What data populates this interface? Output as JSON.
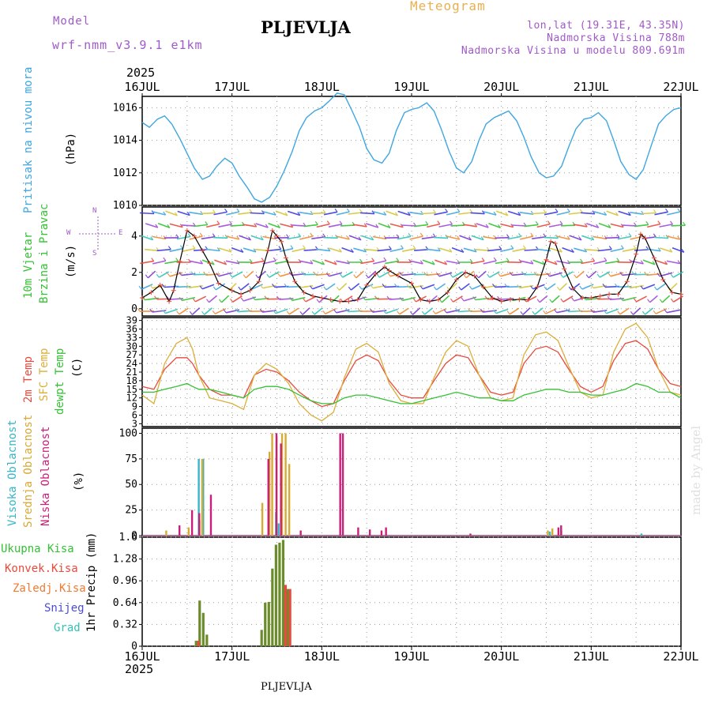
{
  "header": {
    "model_label": "Model",
    "model_name": "wrf-nmm_v3.9.1 e1km",
    "city": "PLJEVLJA",
    "title": "Meteogram",
    "coords": "lon,lat (19.31E, 43.35N)",
    "elevation": "Nadmorska Visina 788m",
    "model_elevation": "Nadmorska Visina u modelu 809.691m",
    "footer_city": "PLJEVLJA",
    "credit": "made by Angel"
  },
  "time_axis": {
    "year": "2025",
    "dates": [
      "16JUL",
      "17JUL",
      "18JUL",
      "19JUL",
      "20JUL",
      "21JUL",
      "22JUL"
    ]
  },
  "panels": {
    "pressure": {
      "title": "Pritisak na nivou mora",
      "unit": "(hPa)",
      "ticks": [
        "1010",
        "1012",
        "1014",
        "1016"
      ]
    },
    "wind": {
      "title_1": "10m Vjetar",
      "title_2": "Brzina i Pravac",
      "unit": "(m/s)",
      "ticks": [
        "0",
        "2",
        "4"
      ],
      "compass_n": "N",
      "compass_s": "S",
      "compass_w": "W",
      "compass_e": "E"
    },
    "temp": {
      "title_1": "2m Temp",
      "title_2": "SFC Temp",
      "title_3": "dewpt Temp",
      "unit": "(C)",
      "ticks": [
        "3",
        "6",
        "9",
        "12",
        "15",
        "18",
        "21",
        "24",
        "27",
        "30",
        "33",
        "36",
        "39"
      ]
    },
    "cloud": {
      "title_1": "Visoka Oblacnost",
      "title_2": "Srednja Oblacnost",
      "title_3": "Niska Oblacnost",
      "unit": "(%)",
      "ticks": [
        "0",
        "25",
        "50",
        "75",
        "100"
      ]
    },
    "precip": {
      "legend": [
        "Ukupna Kisa",
        "Konvek.Kisa",
        "Zaledj.Kisa",
        "Snijeg",
        "Grad"
      ],
      "unit": "1hr Precip (mm)",
      "ticks": [
        "0",
        "0.32",
        "0.64",
        "0.96",
        "1.28",
        "1.6"
      ]
    }
  },
  "colors": {
    "pressure_line": "#3ea6e0",
    "t2m": "#e84a3c",
    "tsfc": "#dcae3a",
    "dewpt": "#33c233",
    "cloud_high": "#36b6c8",
    "cloud_mid": "#d7a935",
    "cloud_low": "#c8207a",
    "rain_total": "#33c233",
    "rain_conv": "#e84a3c",
    "rain_frz": "#f07a30",
    "snow": "#4a4ad8",
    "hail": "#33c2b4",
    "title_purple": "#a05ac8",
    "title_orange": "#e8b050"
  },
  "chart_data": [
    {
      "type": "line",
      "name": "pressure",
      "x_days": [
        0,
        0.08,
        0.17,
        0.25,
        0.33,
        0.42,
        0.5,
        0.58,
        0.67,
        0.75,
        0.83,
        0.92,
        1.0,
        1.08,
        1.17,
        1.25,
        1.33,
        1.42,
        1.5,
        1.58,
        1.67,
        1.75,
        1.83,
        1.92,
        2.0,
        2.08,
        2.17,
        2.25,
        2.33,
        2.42,
        2.5,
        2.58,
        2.67,
        2.75,
        2.83,
        2.92,
        3.0,
        3.08,
        3.17,
        3.25,
        3.33,
        3.42,
        3.5,
        3.58,
        3.67,
        3.75,
        3.83,
        3.92,
        4.0,
        4.08,
        4.17,
        4.25,
        4.33,
        4.42,
        4.5,
        4.58,
        4.67,
        4.75,
        4.83,
        4.92,
        5.0,
        5.08,
        5.17,
        5.25,
        5.33,
        5.42,
        5.5,
        5.58,
        5.67,
        5.75,
        5.83,
        5.92,
        6.0
      ],
      "values": [
        1015.1,
        1014.8,
        1015.3,
        1015.5,
        1015.0,
        1014.1,
        1013.2,
        1012.3,
        1011.6,
        1011.8,
        1012.4,
        1012.9,
        1012.6,
        1011.8,
        1011.1,
        1010.4,
        1010.2,
        1010.5,
        1011.2,
        1012.1,
        1013.3,
        1014.6,
        1015.4,
        1015.8,
        1016.0,
        1016.4,
        1016.9,
        1016.8,
        1015.9,
        1014.8,
        1013.5,
        1012.8,
        1012.6,
        1013.2,
        1014.6,
        1015.7,
        1015.9,
        1016.0,
        1016.3,
        1015.8,
        1014.7,
        1013.3,
        1012.3,
        1012.0,
        1012.7,
        1014.0,
        1015.0,
        1015.4,
        1015.6,
        1015.8,
        1015.2,
        1014.2,
        1013.0,
        1012.0,
        1011.7,
        1011.8,
        1012.4,
        1013.6,
        1014.7,
        1015.3,
        1015.4,
        1015.7,
        1015.2,
        1014.0,
        1012.7,
        1011.9,
        1011.6,
        1012.2,
        1013.7,
        1015.0,
        1015.5,
        1015.9,
        1016.0
      ],
      "ylim": [
        1010,
        1016.7
      ]
    },
    {
      "type": "line",
      "name": "wind_speed",
      "x_days": [
        0,
        0.1,
        0.2,
        0.3,
        0.35,
        0.42,
        0.5,
        0.58,
        0.67,
        0.75,
        0.85,
        1.0,
        1.1,
        1.2,
        1.3,
        1.4,
        1.45,
        1.5,
        1.55,
        1.6,
        1.7,
        1.8,
        1.9,
        2.0,
        2.1,
        2.2,
        2.3,
        2.4,
        2.5,
        2.6,
        2.7,
        2.75,
        2.85,
        3.0,
        3.1,
        3.2,
        3.3,
        3.4,
        3.5,
        3.6,
        3.7,
        3.8,
        3.9,
        4.0,
        4.1,
        4.2,
        4.3,
        4.4,
        4.5,
        4.55,
        4.6,
        4.7,
        4.8,
        4.9,
        5.0,
        5.1,
        5.2,
        5.3,
        5.4,
        5.5,
        5.55,
        5.6,
        5.7,
        5.8,
        5.9,
        6.0
      ],
      "values": [
        0.6,
        0.9,
        1.3,
        0.4,
        1.0,
        2.6,
        4.3,
        4.0,
        3.2,
        2.5,
        1.4,
        1.0,
        0.8,
        1.0,
        1.5,
        3.2,
        4.3,
        4.0,
        3.7,
        2.8,
        1.5,
        0.9,
        0.7,
        0.6,
        0.5,
        0.4,
        0.4,
        0.5,
        1.3,
        1.9,
        2.3,
        2.1,
        1.8,
        1.4,
        0.5,
        0.4,
        0.5,
        0.9,
        1.6,
        2.0,
        1.8,
        1.2,
        0.6,
        0.4,
        0.5,
        0.5,
        0.5,
        1.2,
        2.7,
        3.7,
        3.6,
        2.2,
        1.1,
        0.6,
        0.6,
        0.7,
        0.8,
        0.8,
        1.5,
        3.0,
        4.1,
        3.9,
        2.8,
        1.6,
        0.9,
        0.8
      ],
      "ylim": [
        -0.4,
        5.6
      ]
    },
    {
      "type": "line",
      "name": "temperature",
      "x_days": [
        0,
        0.13,
        0.25,
        0.38,
        0.5,
        0.56,
        0.63,
        0.75,
        0.88,
        1.0,
        1.13,
        1.25,
        1.38,
        1.5,
        1.63,
        1.75,
        1.88,
        2.0,
        2.13,
        2.25,
        2.38,
        2.5,
        2.63,
        2.75,
        2.88,
        3.0,
        3.13,
        3.25,
        3.38,
        3.5,
        3.63,
        3.75,
        3.88,
        4.0,
        4.13,
        4.25,
        4.38,
        4.5,
        4.63,
        4.75,
        4.88,
        5.0,
        5.13,
        5.25,
        5.38,
        5.5,
        5.63,
        5.75,
        5.88,
        6.0
      ],
      "series": [
        {
          "name": "2m Temp",
          "values": [
            16,
            15,
            22,
            26,
            26,
            24,
            20,
            15,
            13,
            13,
            12,
            20,
            22,
            21,
            18,
            14,
            11,
            9,
            10,
            18,
            25,
            27,
            25,
            18,
            13,
            12,
            12,
            18,
            24,
            27,
            26,
            20,
            14,
            13,
            14,
            24,
            29,
            30,
            28,
            22,
            16,
            14,
            16,
            25,
            31,
            32,
            29,
            22,
            17,
            16
          ]
        },
        {
          "name": "SFC Temp",
          "values": [
            13,
            10,
            24,
            31,
            33,
            29,
            20,
            12,
            11,
            10,
            8,
            20,
            24,
            22,
            17,
            10,
            6,
            4,
            7,
            19,
            29,
            31,
            28,
            17,
            11,
            10,
            10,
            19,
            28,
            32,
            30,
            20,
            12,
            11,
            12,
            27,
            34,
            35,
            32,
            23,
            14,
            12,
            13,
            28,
            36,
            38,
            33,
            22,
            14,
            13
          ]
        },
        {
          "name": "dewpt Temp",
          "values": [
            14,
            14,
            15,
            16,
            17,
            16,
            15,
            15,
            14,
            13,
            12,
            15,
            16,
            16,
            15,
            13,
            11,
            10,
            10,
            12,
            13,
            13,
            12,
            11,
            10,
            10,
            11,
            12,
            13,
            14,
            13,
            12,
            12,
            11,
            11,
            13,
            14,
            15,
            15,
            14,
            14,
            13,
            13,
            14,
            15,
            17,
            16,
            14,
            14,
            12
          ]
        }
      ],
      "ylim": [
        2,
        40
      ]
    },
    {
      "type": "bar",
      "name": "cloud_cover",
      "series": [
        {
          "name": "Visoka Oblacnost",
          "x_days": [
            0.63,
            0.68,
            1.49,
            1.52,
            4.54,
            5.56
          ],
          "values": [
            75,
            75,
            23,
            12,
            4,
            2
          ]
        },
        {
          "name": "Srednja Oblacnost",
          "x_days": [
            0.25,
            0.5,
            0.62,
            0.65,
            1.32,
            1.4,
            1.43,
            1.48,
            1.54,
            1.58,
            1.62,
            4.5,
            4.55,
            4.65
          ],
          "values": [
            5,
            8,
            15,
            75,
            32,
            82,
            100,
            97,
            100,
            100,
            70,
            5,
            7,
            5
          ]
        },
        {
          "name": "Niska Oblacnost",
          "x_days": [
            0.38,
            0.52,
            0.6,
            0.73,
            1.37,
            1.46,
            1.51,
            1.73,
            2.17,
            2.2,
            2.37,
            2.5,
            2.63,
            2.68,
            3.62,
            4.6,
            4.63
          ],
          "values": [
            10,
            25,
            22,
            40,
            75,
            100,
            90,
            5,
            100,
            100,
            8,
            6,
            5,
            8,
            2,
            8,
            10
          ]
        }
      ],
      "ylim": [
        0,
        105
      ]
    },
    {
      "type": "bar",
      "name": "precipitation",
      "series": [
        {
          "name": "Ukupna Kisa",
          "x_days": [
            0.6,
            0.64,
            0.68,
            0.72,
            1.33,
            1.37,
            1.41,
            1.45,
            1.49,
            1.53,
            1.57,
            1.62
          ],
          "values": [
            0.08,
            0.67,
            0.49,
            0.17,
            0.24,
            0.64,
            0.65,
            1.14,
            1.49,
            1.52,
            1.56,
            0.84
          ]
        },
        {
          "name": "Konvek.Kisa",
          "x_days": [
            0.6,
            1.57,
            1.62
          ],
          "values": [
            0.08,
            0.9,
            0.84
          ]
        }
      ],
      "ylim": [
        0,
        1.6
      ]
    }
  ]
}
